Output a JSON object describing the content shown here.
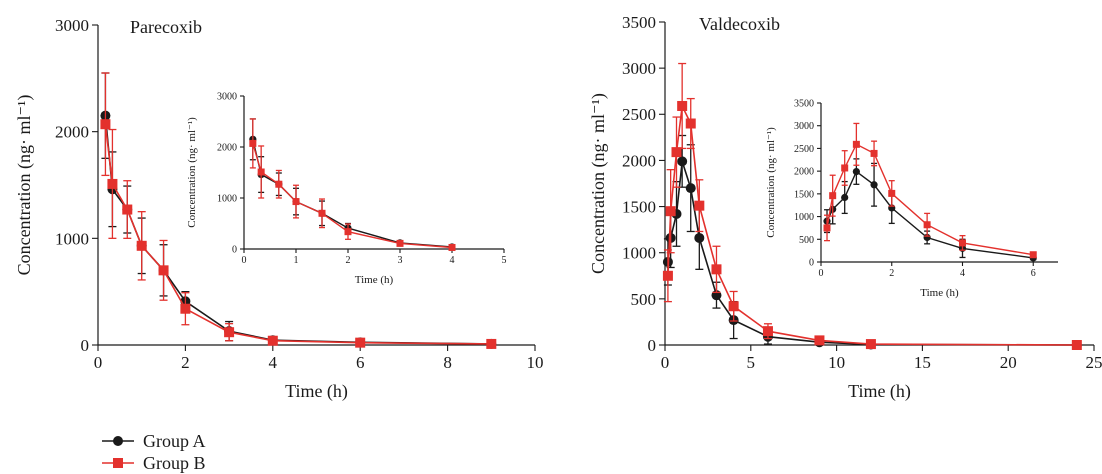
{
  "chart_data": [
    {
      "id": "parecoxib-main",
      "type": "line",
      "title": "Parecoxib",
      "xlabel": "Time (h)",
      "ylabel": "Concentration (ng· ml⁻¹)",
      "xlim": [
        0,
        10
      ],
      "ylim": [
        0,
        3000
      ],
      "xticks": [
        0,
        2,
        4,
        6,
        8,
        10
      ],
      "yticks": [
        0,
        1000,
        2000,
        3000
      ],
      "grid": false,
      "series": [
        {
          "name": "Group A",
          "color": "#1a1a1a",
          "marker": "circle",
          "x": [
            0.17,
            0.33,
            0.67,
            1,
            1.5,
            2,
            3,
            4,
            6,
            9
          ],
          "y": [
            2150,
            1460,
            1270,
            930,
            700,
            410,
            130,
            45,
            25,
            10
          ],
          "err": [
            400,
            350,
            220,
            260,
            240,
            90,
            90,
            15,
            10,
            5
          ]
        },
        {
          "name": "Group B",
          "color": "#e3312d",
          "marker": "square",
          "x": [
            0.17,
            0.33,
            0.67,
            1,
            1.5,
            2,
            3,
            4,
            6,
            9
          ],
          "y": [
            2070,
            1510,
            1270,
            930,
            700,
            340,
            120,
            40,
            22,
            10
          ],
          "err": [
            480,
            510,
            270,
            320,
            280,
            150,
            80,
            15,
            10,
            5
          ]
        }
      ]
    },
    {
      "id": "parecoxib-inset",
      "type": "line",
      "title": "",
      "xlabel": "Time (h)",
      "ylabel": "Concentration (ng· ml⁻¹)",
      "xlim": [
        0,
        5
      ],
      "ylim": [
        0,
        3000
      ],
      "xticks": [
        0,
        1,
        2,
        3,
        4,
        5
      ],
      "yticks": [
        0,
        1000,
        2000,
        3000
      ],
      "grid": false,
      "series": [
        {
          "name": "Group A",
          "color": "#1a1a1a",
          "marker": "circle",
          "x": [
            0.17,
            0.33,
            0.67,
            1,
            1.5,
            2,
            3,
            4
          ],
          "y": [
            2150,
            1460,
            1270,
            930,
            700,
            410,
            120,
            40
          ],
          "err": [
            400,
            350,
            220,
            260,
            240,
            90,
            40,
            15
          ]
        },
        {
          "name": "Group B",
          "color": "#e3312d",
          "marker": "square",
          "x": [
            0.17,
            0.33,
            0.67,
            1,
            1.5,
            2,
            3,
            4
          ],
          "y": [
            2070,
            1510,
            1270,
            930,
            700,
            340,
            110,
            30
          ],
          "err": [
            480,
            510,
            270,
            320,
            280,
            150,
            40,
            15
          ]
        }
      ]
    },
    {
      "id": "valdecoxib-main",
      "type": "line",
      "title": "Valdecoxib",
      "xlabel": "Time (h)",
      "ylabel": "Concentration (ng· ml⁻¹)",
      "xlim": [
        0,
        25
      ],
      "ylim": [
        0,
        3500
      ],
      "xticks": [
        0,
        5,
        10,
        15,
        20,
        25
      ],
      "yticks": [
        0,
        500,
        1000,
        1500,
        2000,
        2500,
        3000,
        3500
      ],
      "grid": false,
      "series": [
        {
          "name": "Group A",
          "color": "#1a1a1a",
          "marker": "circle",
          "x": [
            0.17,
            0.33,
            0.67,
            1,
            1.5,
            2,
            3,
            4,
            6,
            9,
            12,
            24
          ],
          "y": [
            900,
            1160,
            1420,
            1990,
            1700,
            1160,
            540,
            270,
            90,
            30,
            5,
            0
          ],
          "err": [
            250,
            320,
            350,
            280,
            470,
            340,
            140,
            200,
            80,
            20,
            5,
            0
          ]
        },
        {
          "name": "Group B",
          "color": "#e3312d",
          "marker": "square",
          "x": [
            0.17,
            0.33,
            0.67,
            1,
            1.5,
            2,
            3,
            4,
            6,
            9,
            12,
            24
          ],
          "y": [
            750,
            1450,
            2090,
            2590,
            2400,
            1510,
            820,
            420,
            150,
            50,
            10,
            0
          ],
          "err": [
            280,
            450,
            380,
            460,
            270,
            280,
            250,
            160,
            80,
            20,
            5,
            0
          ]
        }
      ]
    },
    {
      "id": "valdecoxib-inset",
      "type": "line",
      "title": "",
      "xlabel": "Time (h)",
      "ylabel": "Concentration (ng· ml⁻¹)",
      "xlim": [
        0,
        6.7
      ],
      "ylim": [
        0,
        3500
      ],
      "xticks": [
        0,
        2,
        4,
        6
      ],
      "yticks": [
        0,
        500,
        1000,
        1500,
        2000,
        2500,
        3000,
        3500
      ],
      "grid": false,
      "series": [
        {
          "name": "Group A",
          "color": "#1a1a1a",
          "marker": "circle",
          "x": [
            0.17,
            0.33,
            0.67,
            1,
            1.5,
            2,
            3,
            4,
            6
          ],
          "y": [
            900,
            1160,
            1420,
            1990,
            1700,
            1190,
            540,
            300,
            90
          ],
          "err": [
            250,
            320,
            350,
            280,
            470,
            340,
            140,
            200,
            40
          ]
        },
        {
          "name": "Group B",
          "color": "#e3312d",
          "marker": "square",
          "x": [
            0.17,
            0.33,
            0.67,
            1,
            1.5,
            2,
            3,
            4,
            6
          ],
          "y": [
            750,
            1460,
            2070,
            2590,
            2390,
            1510,
            820,
            420,
            160
          ],
          "err": [
            280,
            450,
            380,
            460,
            270,
            280,
            250,
            160,
            40
          ]
        }
      ]
    }
  ],
  "legend": {
    "position": "bottom-left",
    "items": [
      {
        "label": "Group A",
        "color": "#1a1a1a",
        "marker": "circle"
      },
      {
        "label": "Group B",
        "color": "#e3312d",
        "marker": "square"
      }
    ]
  }
}
